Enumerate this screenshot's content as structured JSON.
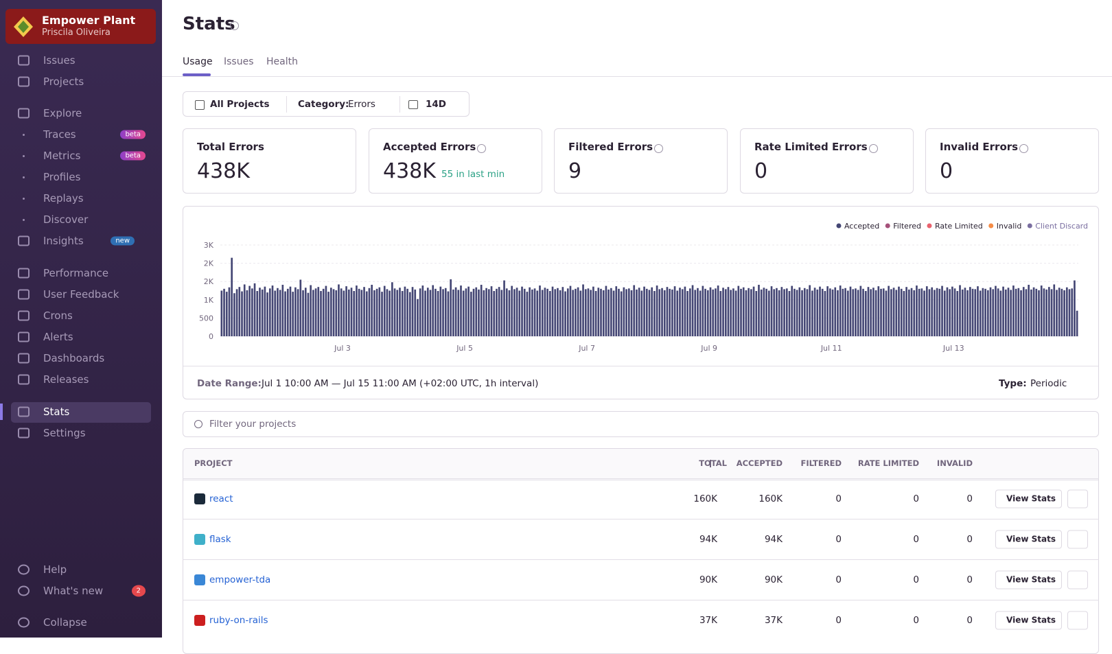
{
  "sidebar": {
    "org": "Empower Plant",
    "user": "Priscila Oliveira",
    "nav": [
      {
        "label": "Issues"
      },
      {
        "label": "Projects"
      },
      {
        "label": "Explore"
      },
      {
        "label": "Traces",
        "badge": "beta"
      },
      {
        "label": "Metrics",
        "badge": "beta"
      },
      {
        "label": "Profiles"
      },
      {
        "label": "Replays"
      },
      {
        "label": "Discover"
      },
      {
        "label": "Insights",
        "badge": "new"
      },
      {
        "label": "Performance"
      },
      {
        "label": "User Feedback"
      },
      {
        "label": "Crons"
      },
      {
        "label": "Alerts"
      },
      {
        "label": "Dashboards"
      },
      {
        "label": "Releases"
      },
      {
        "label": "Stats"
      },
      {
        "label": "Settings"
      }
    ],
    "footer": [
      {
        "label": "Help"
      },
      {
        "label": "What's new",
        "badge": "2"
      },
      {
        "label": "Collapse"
      }
    ]
  },
  "header": {
    "title": "Stats",
    "tabs": [
      "Usage",
      "Issues",
      "Health"
    ]
  },
  "filters": {
    "project": "All Projects",
    "category_label": "Category:",
    "category": "Errors",
    "period": "14D"
  },
  "cards": [
    {
      "title": "Total Errors",
      "value": "438K"
    },
    {
      "title": "Accepted Errors",
      "value": "438K",
      "note": "55 in last min"
    },
    {
      "title": "Filtered Errors",
      "value": "9"
    },
    {
      "title": "Rate Limited Errors",
      "value": "0"
    },
    {
      "title": "Invalid Errors",
      "value": "0"
    }
  ],
  "chart_data": {
    "type": "bar",
    "ylim": [
      0,
      2500
    ],
    "yticks": [
      0,
      500,
      {
        "value": 1000,
        "label": "1K"
      },
      {
        "value": 1500,
        "label": "2K"
      },
      {
        "value": 2000,
        "label": "2K"
      },
      {
        "value": 2500,
        "label": "3K"
      }
    ],
    "xlim": [
      0,
      337
    ],
    "xticks": [
      {
        "value": 48,
        "label": "Jul 3"
      },
      {
        "value": 96,
        "label": "Jul 5"
      },
      {
        "value": 144,
        "label": "Jul 7"
      },
      {
        "value": 192,
        "label": "Jul 9"
      },
      {
        "value": 240,
        "label": "Jul 11"
      },
      {
        "value": 288,
        "label": "Jul 13"
      }
    ],
    "grid": true,
    "legend": "top-right",
    "series": [
      {
        "name": "Accepted",
        "color": "#444674",
        "values": [
          1250,
          1300,
          1220,
          1340,
          2150,
          1180,
          1290,
          1350,
          1230,
          1420,
          1260,
          1380,
          1310,
          1450,
          1240,
          1330,
          1280,
          1360,
          1200,
          1310,
          1390,
          1250,
          1320,
          1270,
          1410,
          1230,
          1300,
          1360,
          1220,
          1340,
          1290,
          1550,
          1260,
          1330,
          1190,
          1400,
          1270,
          1310,
          1350,
          1240,
          1300,
          1380,
          1220,
          1330,
          1290,
          1260,
          1420,
          1310,
          1250,
          1370,
          1280,
          1330,
          1240,
          1390,
          1300,
          1270,
          1350,
          1230,
          1320,
          1410,
          1260,
          1300,
          1340,
          1220,
          1380,
          1290,
          1250,
          1480,
          1310,
          1270,
          1330,
          1240,
          1360,
          1300,
          1210,
          1350,
          1280,
          1020,
          1310,
          1390,
          1250,
          1330,
          1270,
          1400,
          1300,
          1240,
          1360,
          1290,
          1320,
          1230,
          1560,
          1280,
          1340,
          1270,
          1390,
          1250,
          1310,
          1360,
          1220,
          1300,
          1340,
          1280,
          1410,
          1260,
          1320,
          1290,
          1370,
          1240,
          1300,
          1350,
          1270,
          1530,
          1310,
          1260,
          1380,
          1290,
          1330,
          1250,
          1360,
          1300,
          1220,
          1340,
          1280,
          1310,
          1250,
          1390,
          1270,
          1330,
          1300,
          1240,
          1360,
          1290,
          1320,
          1260,
          1350,
          1230,
          1310,
          1380,
          1270,
          1300,
          1340,
          1250,
          1420,
          1290,
          1310,
          1270,
          1360,
          1240,
          1330,
          1300,
          1260,
          1380,
          1280,
          1320,
          1250,
          1370,
          1300,
          1230,
          1340,
          1290,
          1310,
          1260,
          1400,
          1280,
          1330,
          1250,
          1360,
          1300,
          1270,
          1340,
          1240,
          1390,
          1290,
          1320,
          1260,
          1350,
          1300,
          1280,
          1370,
          1250,
          1330,
          1290,
          1360,
          1240,
          1310,
          1400,
          1270,
          1320,
          1250,
          1380,
          1300,
          1260,
          1340,
          1280,
          1310,
          1390,
          1240,
          1330,
          1290,
          1350,
          1270,
          1310,
          1250,
          1380,
          1300,
          1340,
          1260,
          1320,
          1290,
          1360,
          1240,
          1410,
          1280,
          1330,
          1300,
          1250,
          1370,
          1290,
          1320,
          1260,
          1350,
          1290,
          1310,
          1240,
          1380,
          1300,
          1270,
          1340,
          1260,
          1320,
          1290,
          1400,
          1250,
          1330,
          1280,
          1360,
          1300,
          1240,
          1370,
          1310,
          1280,
          1340,
          1260,
          1390,
          1300,
          1320,
          1250,
          1360,
          1290,
          1310,
          1270,
          1380,
          1300,
          1240,
          1350,
          1290,
          1330,
          1260,
          1370,
          1300,
          1310,
          1250,
          1380,
          1290,
          1330,
          1270,
          1360,
          1300,
          1240,
          1350,
          1280,
          1320,
          1260,
          1390,
          1300,
          1310,
          1250,
          1370,
          1290,
          1340,
          1270,
          1320,
          1300,
          1380,
          1250,
          1340,
          1290,
          1360,
          1310,
          1240,
          1400,
          1280,
          1330,
          1260,
          1350,
          1300,
          1290,
          1370,
          1250,
          1320,
          1300,
          1260,
          1340,
          1290,
          1380,
          1310,
          1250,
          1360,
          1280,
          1330,
          1270,
          1390,
          1300,
          1320,
          1260,
          1350,
          1290,
          1410,
          1280,
          1340,
          1300,
          1260,
          1390,
          1310,
          1280,
          1350,
          1290,
          1420,
          1270,
          1330,
          1300,
          1260,
          1340,
          1290,
          1310,
          1530,
          700
        ]
      },
      {
        "name": "Filtered",
        "color": "#a5517a"
      },
      {
        "name": "Rate Limited",
        "color": "#e9626e"
      },
      {
        "name": "Invalid",
        "color": "#f58c46"
      },
      {
        "name": "Client Discard",
        "color": "#7a6ea0"
      }
    ]
  },
  "chart_footer": {
    "date_range_label": "Date Range:",
    "date_range": "Jul 1 10:00 AM — Jul 15 11:00 AM (+02:00 UTC, 1h interval)",
    "type_label": "Type:",
    "type": "Periodic"
  },
  "search": {
    "placeholder": "Filter your projects"
  },
  "table": {
    "columns": [
      "PROJECT",
      "TOTAL",
      "ACCEPTED",
      "FILTERED",
      "RATE LIMITED",
      "INVALID"
    ],
    "rows": [
      [
        "react",
        "160K",
        "160K",
        "0",
        "0",
        "0"
      ],
      [
        "flask",
        "94K",
        "94K",
        "0",
        "0",
        "0"
      ],
      [
        "empower-tda",
        "90K",
        "90K",
        "0",
        "0",
        "0"
      ],
      [
        "ruby-on-rails",
        "37K",
        "37K",
        "0",
        "0",
        "0"
      ]
    ],
    "action": "View Stats"
  }
}
